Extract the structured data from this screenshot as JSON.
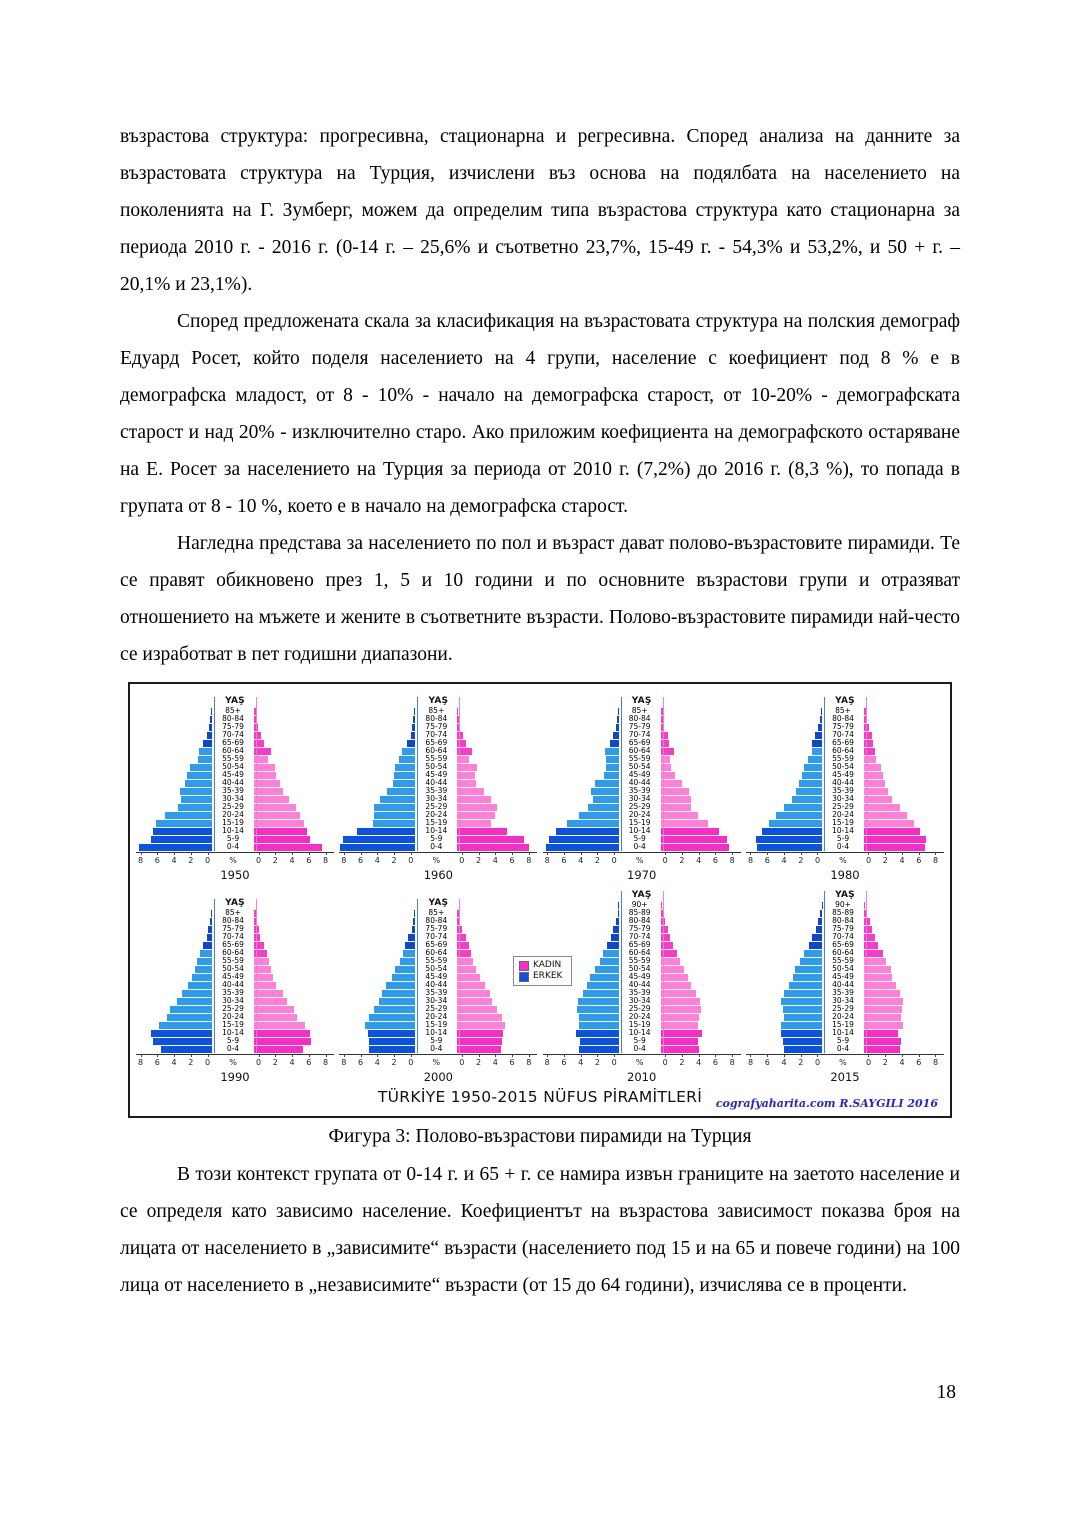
{
  "document": {
    "paragraphs": {
      "p1": "възрастова структура: прогресивна, стационарна и регресивна. Според анализа на данните за възрастовата структура на Турция, изчислени  въз основа на подялбата на населението на поколенията на Г. Зумберг, можем да определим типа възрастова структура като стационарна за периода 2010 г. - 2016 г. (0-14 г. – 25,6%  и  съответно 23,7%, 15-49 г. - 54,3% и 53,2%, и 50 + г. – 20,1% и 23,1%).",
      "p2": "Според предложената скала за класификация на възрастовата структура на полския демограф Едуард Росет, който поделя населението на 4 групи, население с коефициент под 8 % е в демографска младост, от 8 - 10% - начало на демографска старост, от 10-20% - демографската старост  и над 20% - изключително старо. Ако приложим коефициента на демографското остаряване на Е. Росет за населението на Турция за периода от 2010 г. (7,2%) до 2016 г. (8,3 %), то попада в групата от 8 - 10 %, което е в начало на демографска старост.",
      "p3": "Нагледна представа за населението по пол и възраст дават полово-възрастовите пирамиди. Те се правят обикновено през 1, 5 и 10 години и по основните възрастови групи и отразяват отношението на мъжете и жените в съответните възрасти. Полово-възрастовите пирамиди най-често се изработват в пет годишни диапазони.",
      "p4": "В този контекст групата от 0-14 г. и 65 + г. се намира извън границите на заетото население и се определя като зависимо население. Коефициентът на възрастова зависимост показва броя на лицата от населението в „зависимите“ възрасти (населението под 15 и на 65 и повече години) на 100 лица от населението в „независимите“ възрасти (от 15 до 64 години), изчислява се в проценти.",
      "caption": "Фигура 3: Полово-възрастови пирамиди на Турция"
    },
    "page_number": "18"
  },
  "figure": {
    "title": "TÜRKİYE 1950-2015 NÜFUS PİRAMİTLERİ",
    "credit": "cografyaharita.com  R.SAYGILI 2016",
    "axis_label": "YAŞ",
    "percent_label": "%",
    "tick_labels_left": [
      "8",
      "6",
      "4",
      "2",
      "0"
    ],
    "tick_labels_right": [
      "0",
      "2",
      "4",
      "6",
      "8"
    ],
    "legend": {
      "female_label": "KADIN",
      "male_label": "ERKEK"
    },
    "colors": {
      "male_young": "#0c52e2",
      "male_mid": "#2f9bec",
      "male_old": "#0e46cc",
      "female_young": "#fa2cc8",
      "female_mid": "#ff80d6",
      "female_old": "#f93cc8",
      "male_axis": "#4d78e8",
      "female_axis": "#ff7ad6"
    }
  },
  "chart_data": [
    {
      "type": "bar",
      "subtype": "population-pyramid",
      "year": "1950",
      "xlim": [
        -8,
        8
      ],
      "age_groups": [
        "0-4",
        "5-9",
        "10-14",
        "15-19",
        "20-24",
        "25-29",
        "30-34",
        "35-39",
        "40-44",
        "45-49",
        "50-54",
        "55-59",
        "60-64",
        "65-69",
        "70-74",
        "75-79",
        "80-84",
        "85+"
      ],
      "series": [
        {
          "name": "ERKEK",
          "values": [
            7.7,
            6.4,
            6.2,
            5.9,
            5.0,
            3.6,
            3.3,
            3.4,
            2.8,
            2.6,
            2.3,
            1.5,
            1.4,
            0.9,
            0.5,
            0.3,
            0.2,
            0.1
          ]
        },
        {
          "name": "KADIN",
          "values": [
            7.2,
            5.9,
            5.6,
            5.3,
            4.8,
            4.4,
            3.7,
            3.0,
            2.7,
            2.3,
            2.2,
            1.5,
            1.8,
            1.0,
            0.7,
            0.4,
            0.3,
            0.2
          ]
        }
      ]
    },
    {
      "type": "bar",
      "subtype": "population-pyramid",
      "year": "1960",
      "xlim": [
        -8,
        8
      ],
      "age_groups": [
        "0-4",
        "5-9",
        "10-14",
        "15-19",
        "20-24",
        "25-29",
        "30-34",
        "35-39",
        "40-44",
        "45-49",
        "50-54",
        "55-59",
        "60-64",
        "65-69",
        "70-74",
        "75-79",
        "80-84",
        "85+"
      ],
      "series": [
        {
          "name": "ERKEK",
          "values": [
            7.9,
            7.6,
            6.1,
            4.5,
            4.3,
            4.3,
            3.7,
            3.0,
            2.3,
            2.2,
            2.1,
            1.7,
            1.4,
            0.9,
            0.5,
            0.3,
            0.2,
            0.1
          ]
        },
        {
          "name": "KADIN",
          "values": [
            7.5,
            7.0,
            5.2,
            3.5,
            4.0,
            4.2,
            3.5,
            2.8,
            2.0,
            1.9,
            2.1,
            1.2,
            1.5,
            0.9,
            0.6,
            0.3,
            0.2,
            0.1
          ]
        }
      ]
    },
    {
      "type": "bar",
      "subtype": "population-pyramid",
      "year": "1970",
      "xlim": [
        -8,
        8
      ],
      "age_groups": [
        "0-4",
        "5-9",
        "10-14",
        "15-19",
        "20-24",
        "25-29",
        "30-34",
        "35-39",
        "40-44",
        "45-49",
        "50-54",
        "55-59",
        "60-64",
        "65-69",
        "70-74",
        "75-79",
        "80-84",
        "85+"
      ],
      "series": [
        {
          "name": "ERKEK",
          "values": [
            7.6,
            7.3,
            6.6,
            5.4,
            4.2,
            3.2,
            2.7,
            2.9,
            2.5,
            1.5,
            1.3,
            1.3,
            1.4,
            0.9,
            0.6,
            0.3,
            0.2,
            0.1
          ]
        },
        {
          "name": "KADIN",
          "values": [
            7.2,
            7.0,
            6.1,
            5.0,
            3.9,
            3.2,
            3.2,
            3.0,
            2.2,
            1.5,
            1.1,
            1.0,
            1.4,
            0.9,
            0.8,
            0.4,
            0.3,
            0.2
          ]
        }
      ]
    },
    {
      "type": "bar",
      "subtype": "population-pyramid",
      "year": "1980",
      "xlim": [
        -8,
        8
      ],
      "age_groups": [
        "0-4",
        "5-9",
        "10-14",
        "15-19",
        "20-24",
        "25-29",
        "30-34",
        "35-39",
        "40-44",
        "45-49",
        "50-54",
        "55-59",
        "60-64",
        "65-69",
        "70-74",
        "75-79",
        "80-84",
        "85+"
      ],
      "series": [
        {
          "name": "ERKEK",
          "values": [
            6.8,
            6.9,
            6.3,
            5.6,
            4.8,
            4.0,
            3.2,
            2.7,
            2.4,
            2.1,
            1.9,
            1.5,
            1.1,
            1.0,
            0.7,
            0.4,
            0.2,
            0.1
          ]
        },
        {
          "name": "KADIN",
          "values": [
            6.4,
            6.5,
            5.9,
            5.3,
            4.5,
            3.8,
            3.0,
            2.5,
            2.2,
            2.0,
            1.8,
            1.3,
            1.2,
            1.0,
            0.8,
            0.5,
            0.3,
            0.2
          ]
        }
      ]
    },
    {
      "type": "bar",
      "subtype": "population-pyramid",
      "year": "1990",
      "xlim": [
        -8,
        8
      ],
      "age_groups": [
        "0-4",
        "5-9",
        "10-14",
        "15-19",
        "20-24",
        "25-29",
        "30-34",
        "35-39",
        "40-44",
        "45-49",
        "50-54",
        "55-59",
        "60-64",
        "65-69",
        "70-74",
        "75-79",
        "80-84",
        "85+"
      ],
      "series": [
        {
          "name": "ERKEK",
          "values": [
            5.4,
            6.2,
            6.4,
            5.6,
            4.7,
            4.4,
            3.7,
            3.2,
            2.5,
            2.1,
            1.8,
            1.6,
            1.3,
            0.9,
            0.5,
            0.4,
            0.2,
            0.1
          ]
        },
        {
          "name": "KADIN",
          "values": [
            5.2,
            6.0,
            5.9,
            5.4,
            4.5,
            4.2,
            3.5,
            3.0,
            2.3,
            2.0,
            1.8,
            1.6,
            1.4,
            1.0,
            0.6,
            0.5,
            0.3,
            0.2
          ]
        }
      ]
    },
    {
      "type": "bar",
      "subtype": "population-pyramid",
      "year": "2000",
      "xlim": [
        -8,
        8
      ],
      "age_groups": [
        "0-4",
        "5-9",
        "10-14",
        "15-19",
        "20-24",
        "25-29",
        "30-34",
        "35-39",
        "40-44",
        "45-49",
        "50-54",
        "55-59",
        "60-64",
        "65-69",
        "70-74",
        "75-79",
        "80-84",
        "85+"
      ],
      "series": [
        {
          "name": "ERKEK",
          "values": [
            4.9,
            4.9,
            5.0,
            5.3,
            4.9,
            4.3,
            3.8,
            3.5,
            3.1,
            2.5,
            2.1,
            1.6,
            1.3,
            1.1,
            0.8,
            0.4,
            0.2,
            0.1
          ]
        },
        {
          "name": "KADIN",
          "values": [
            4.6,
            4.7,
            4.8,
            5.0,
            4.7,
            4.2,
            3.7,
            3.4,
            2.9,
            2.4,
            2.0,
            1.6,
            1.4,
            1.2,
            0.9,
            0.5,
            0.3,
            0.2
          ]
        }
      ]
    },
    {
      "type": "bar",
      "subtype": "population-pyramid",
      "year": "2010",
      "xlim": [
        -8,
        8
      ],
      "age_groups": [
        "0-4",
        "5-9",
        "10-14",
        "15-19",
        "20-24",
        "25-29",
        "30-34",
        "35-39",
        "40-44",
        "45-49",
        "50-54",
        "55-59",
        "60-64",
        "65-69",
        "70-74",
        "75-79",
        "80-84",
        "85-89",
        "90+"
      ],
      "series": [
        {
          "name": "ERKEK",
          "values": [
            4.2,
            4.1,
            4.5,
            4.2,
            4.2,
            4.4,
            4.3,
            3.8,
            3.3,
            3.0,
            2.5,
            2.0,
            1.6,
            1.2,
            0.8,
            0.6,
            0.3,
            0.1,
            0.05
          ]
        },
        {
          "name": "KADIN",
          "values": [
            4.0,
            3.9,
            4.4,
            3.9,
            4.0,
            4.2,
            4.1,
            3.7,
            3.2,
            2.9,
            2.5,
            2.0,
            1.7,
            1.3,
            1.0,
            0.8,
            0.5,
            0.2,
            0.1
          ]
        }
      ]
    },
    {
      "type": "bar",
      "subtype": "population-pyramid",
      "year": "2015",
      "xlim": [
        -8,
        8
      ],
      "age_groups": [
        "0-4",
        "5-9",
        "10-14",
        "15-19",
        "20-24",
        "25-29",
        "30-34",
        "35-39",
        "40-44",
        "45-49",
        "50-54",
        "55-59",
        "60-64",
        "65-69",
        "70-74",
        "75-79",
        "80-84",
        "85-89",
        "90+"
      ],
      "series": [
        {
          "name": "ERKEK",
          "values": [
            4.0,
            4.1,
            4.3,
            4.3,
            4.0,
            4.1,
            4.3,
            4.0,
            3.5,
            3.0,
            2.8,
            2.3,
            1.9,
            1.4,
            1.0,
            0.6,
            0.4,
            0.2,
            0.05
          ]
        },
        {
          "name": "KADIN",
          "values": [
            3.8,
            3.9,
            3.6,
            4.1,
            3.9,
            4.0,
            4.1,
            3.8,
            3.4,
            2.9,
            2.8,
            2.3,
            2.0,
            1.5,
            1.2,
            0.8,
            0.6,
            0.3,
            0.1
          ]
        }
      ]
    }
  ]
}
